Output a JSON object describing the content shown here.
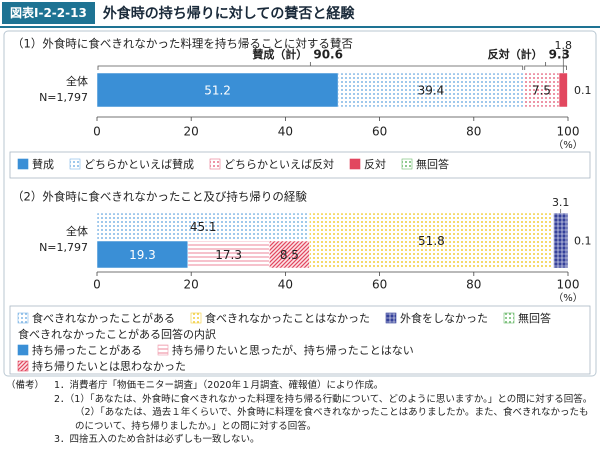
{
  "header": {
    "label": "図表Ⅰ-2-2-13",
    "title": "外食時の持ち帰りに対しての賛否と経験"
  },
  "chart_data": [
    {
      "type": "stacked-bar-horizontal",
      "subtitle": "（1）外食時に食べきれなかった料理を持ち帰ることに対する賛否",
      "categories": [
        "全体"
      ],
      "sample_size": "N=1,797",
      "series": [
        {
          "name": "賛成",
          "color": "#3a8fd6",
          "pattern": "solid",
          "values": [
            51.2
          ]
        },
        {
          "name": "どちらかといえば賛成",
          "color": "#7fb6e6",
          "pattern": "dots",
          "values": [
            39.4
          ]
        },
        {
          "name": "どちらかといえば反対",
          "color": "#e8738a",
          "pattern": "dots",
          "values": [
            7.5
          ]
        },
        {
          "name": "反対",
          "color": "#e2475f",
          "pattern": "solid",
          "values": [
            1.8
          ]
        },
        {
          "name": "無回答",
          "color": "#6ab86a",
          "pattern": "dots",
          "values": [
            0.1
          ]
        }
      ],
      "totals": [
        {
          "label": "賛成（計）",
          "value": 90.6
        },
        {
          "label": "反対（計）",
          "value": 9.3
        }
      ],
      "xlim": [
        0,
        100
      ],
      "xticks": [
        0,
        20,
        40,
        60,
        80,
        100
      ],
      "x_unit": "（%）",
      "legend": "bottom"
    },
    {
      "type": "stacked-bar-horizontal",
      "subtitle": "（2）外食時に食べきれなかったこと及び持ち帰りの経験",
      "categories": [
        "全体"
      ],
      "sample_size": "N=1,797",
      "series": [
        {
          "name": "食べきれなかったことがある",
          "color": "#7fb6e6",
          "pattern": "dots",
          "values": [
            45.1
          ]
        },
        {
          "name": "食べきれなかったことはなかった",
          "color": "#f2cf3c",
          "pattern": "dots",
          "values": [
            51.8
          ]
        },
        {
          "name": "外食をしなかった",
          "color": "#34409a",
          "pattern": "grid",
          "values": [
            3.1
          ]
        },
        {
          "name": "無回答",
          "color": "#6ab86a",
          "pattern": "dots",
          "values": [
            0.1
          ]
        }
      ],
      "breakdown": {
        "title": "食べきれなかったことがある回答の内訳",
        "series": [
          {
            "name": "持ち帰ったことがある",
            "color": "#3a8fd6",
            "pattern": "solid",
            "values": [
              19.3
            ]
          },
          {
            "name": "持ち帰りたいと思ったが、持ち帰ったことはない",
            "color": "#f09aaa",
            "pattern": "stripes",
            "values": [
              17.3
            ]
          },
          {
            "name": "持ち帰りたいとは思わなかった",
            "color": "#e2475f",
            "pattern": "hatch",
            "values": [
              8.5
            ]
          }
        ]
      },
      "xlim": [
        0,
        100
      ],
      "xticks": [
        0,
        20,
        40,
        60,
        80,
        100
      ],
      "x_unit": "（%）",
      "legend": "bottom"
    }
  ],
  "notes": {
    "label": "（備考）",
    "items": [
      "1．消費者庁「物価モニター調査」（2020年１月調査、確報値）により作成。",
      "2．（1）「あなたは、外食時に食べきれなかった料理を持ち帰る行動について、どのように思いますか。」との問に対する回答。",
      "（2）「あなたは、過去１年くらいで、外食時に料理を食べきれなかったことはありましたか。また、食べきれなかったものについて、持ち帰りましたか。」との問に対する回答。",
      "3．四捨五入のため合計は必ずしも一致しない。"
    ]
  }
}
